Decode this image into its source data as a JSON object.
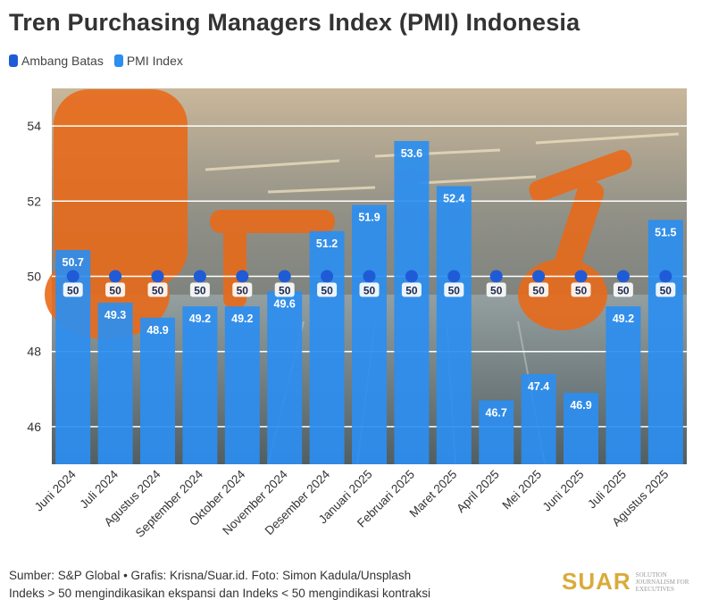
{
  "title": "Tren Purchasing Managers Index (PMI) Indonesia",
  "legend": {
    "threshold_label": "Ambang Batas",
    "pmi_label": "PMI Index"
  },
  "colors": {
    "threshold": "#1f5bd6",
    "pmi": "#2b8ef0",
    "grid": "#ffffff",
    "photo_robot": "#e86a1a",
    "photo_bg": "#7d8a8c"
  },
  "footer": {
    "line1": "Sumber: S&P Global • Grafis: Krisna/Suar.id. Foto: Simon Kadula/Unsplash",
    "line2": "Indeks > 50 mengindikasikan ekspansi dan Indeks < 50 mengindikasi kontraksi"
  },
  "brand": {
    "logo": "SUAR",
    "tagline": "SOLUTION JOURNALISM FOR EXECUTIVES"
  },
  "chart_data": {
    "type": "bar",
    "categories": [
      "Juni 2024",
      "Juli 2024",
      "Agustus 2024",
      "September 2024",
      "Oktober 2024",
      "November 2024",
      "Desember 2024",
      "Januari 2025",
      "Februari 2025",
      "Maret 2025",
      "April 2025",
      "Mei 2025",
      "Juni 2025",
      "Juli 2025",
      "Agustus 2025"
    ],
    "series": [
      {
        "name": "PMI Index",
        "type": "bar",
        "values": [
          50.7,
          49.3,
          48.9,
          49.2,
          49.2,
          49.6,
          51.2,
          51.9,
          53.6,
          52.4,
          46.7,
          47.4,
          46.9,
          49.2,
          51.5
        ]
      },
      {
        "name": "Ambang Batas",
        "type": "scatter",
        "values": [
          50,
          50,
          50,
          50,
          50,
          50,
          50,
          50,
          50,
          50,
          50,
          50,
          50,
          50,
          50
        ]
      }
    ],
    "yticks": [
      46,
      48,
      50,
      52,
      54
    ],
    "ylim": [
      45,
      55
    ],
    "grid": true,
    "legend_position": "top-left"
  }
}
